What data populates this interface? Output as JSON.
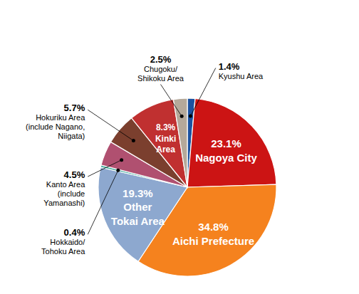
{
  "chart_data": {
    "type": "pie",
    "categories": [
      "Kyushu Area",
      "Nagoya City",
      "Aichi Prefecture",
      "Other\nTokai Area",
      "Hokkaido/\nTohoku Area",
      "Kanto Area\n(include\nYamanashi)",
      "Hokuriku Area\n(include Nagano,\nNiigata)",
      "Kinki\nArea",
      "Chugoku/\nShikoku Area"
    ],
    "values": [
      1.4,
      23.1,
      34.8,
      19.3,
      0.4,
      4.5,
      5.7,
      8.3,
      2.5
    ],
    "value_labels": [
      "1.4%",
      "23.1%",
      "34.8%",
      "19.3%",
      "0.4%",
      "4.5%",
      "5.7%",
      "8.3%",
      "2.5%"
    ],
    "colors": [
      "#1B52A0",
      "#CC1414",
      "#F5821E",
      "#8DA8CF",
      "#4AAFA0",
      "#B05070",
      "#7B3F2E",
      "#C03030",
      "#B5A99A"
    ]
  }
}
